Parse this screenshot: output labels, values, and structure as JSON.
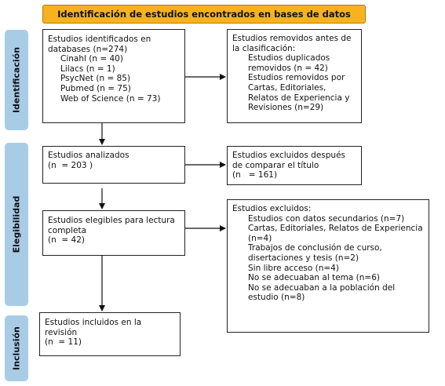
{
  "title": "Identificación de estudios encontrados en bases de datos",
  "phases": {
    "identificacion": "Identificación",
    "elegibilidad": "Elegibilidad",
    "inclusion": "Inclusión"
  },
  "identified": {
    "heading": "Estudios identificados en databases (n=274)",
    "sources": [
      "Cinahl (n = 40)",
      "Lilacs (n = 1)",
      "PsycNet (n = 85)",
      "Pubmed (n = 75)",
      "Web of Science (n = 73)"
    ]
  },
  "removed": {
    "heading": "Estudios removidos antes de la clasificación:",
    "items": [
      "Estudios duplicados removidos (n = 42)",
      "Estudios removidos por Cartas, Editoriales, Relatos de Experiencia y Revisiones (n=29)"
    ]
  },
  "analyzed": {
    "line1": "Estudios analizados",
    "line2": "(n  = 203 )"
  },
  "excluded_title": {
    "line1": "Estudios excluidos después de comparar el título",
    "line2": "(n   = 161)"
  },
  "eligible": {
    "line1": "Estudios elegibles para lectura completa",
    "line2": "(n  = 42)"
  },
  "excluded": {
    "heading": "Estudios excluidos:",
    "items": [
      "Estudios con datos secundarios (n=7)",
      "Cartas, Editoriales, Relatos de Experiencia (n=4)",
      "Trabajos de conclusión de curso, disertaciones y tesis (n=2)",
      "Sin libre acceso (n=4)",
      "No se adecuaban al tema (n=6)",
      "No se adecuaban a la población del estudio (n=8)"
    ]
  },
  "included": {
    "line1": "Estudios incluidos en la revisión",
    "line2": "(n  = 11)"
  },
  "colors": {
    "title_fill": "#f7b21e",
    "phase_fill": "#a9cce6"
  }
}
